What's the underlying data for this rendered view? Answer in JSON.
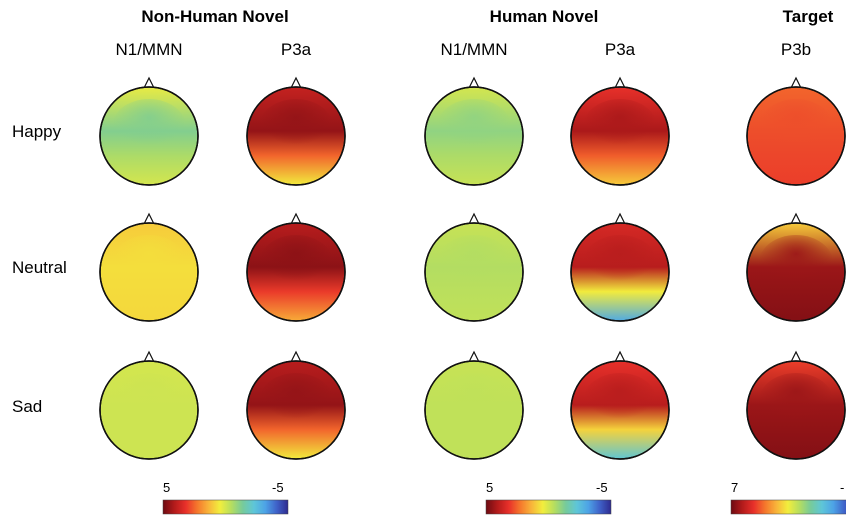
{
  "group_titles": [
    "Non-Human Novel",
    "Human Novel",
    "Target"
  ],
  "component_labels": [
    "N1/MMN",
    "P3a",
    "N1/MMN",
    "P3a",
    "P3b"
  ],
  "row_labels": [
    "Happy",
    "Neutral",
    "Sad"
  ],
  "colorbars": [
    {
      "left_label": "5",
      "right_label": "-5"
    },
    {
      "left_label": "5",
      "right_label": "-5"
    },
    {
      "left_label": "7",
      "right_label": "-"
    }
  ],
  "colors": {
    "colormap": [
      "#6d0b12",
      "#b31b1b",
      "#e8302a",
      "#f5772c",
      "#f8b43a",
      "#f2ee3d",
      "#b6de5f",
      "#77cb9a",
      "#5ec6d8",
      "#4da3e6",
      "#3f62c9",
      "#2e2b8f"
    ],
    "outline": "#111111"
  },
  "maps": [
    {
      "row": "Happy",
      "component": "N1/MMN",
      "value_top": 0.47,
      "value_center": 0.62,
      "value_bottom": 0.5
    },
    {
      "row": "Happy",
      "component": "P3a",
      "value_top": 0.12,
      "value_center": 0.05,
      "value_bottom": 0.45
    },
    {
      "row": "Happy",
      "component": "N1/MMN",
      "value_top": 0.5,
      "value_center": 0.6,
      "value_bottom": 0.52
    },
    {
      "row": "Happy",
      "component": "P3a",
      "value_top": 0.18,
      "value_center": 0.08,
      "value_bottom": 0.4
    },
    {
      "row": "Happy",
      "component": "P3b",
      "value_top": 0.25,
      "value_center": 0.22,
      "value_bottom": 0.2
    },
    {
      "row": "Neutral",
      "component": "N1/MMN",
      "value_top": 0.4,
      "value_center": 0.43,
      "value_bottom": 0.42
    },
    {
      "row": "Neutral",
      "component": "P3a",
      "value_top": 0.1,
      "value_center": 0.04,
      "value_bottom": 0.35
    },
    {
      "row": "Neutral",
      "component": "N1/MMN",
      "value_top": 0.52,
      "value_center": 0.55,
      "value_bottom": 0.53
    },
    {
      "row": "Neutral",
      "component": "P3a",
      "value_top": 0.15,
      "value_center": 0.1,
      "value_bottom": 0.8
    },
    {
      "row": "Neutral",
      "component": "P3b",
      "value_top": 0.4,
      "value_center": 0.06,
      "value_bottom": 0.03
    },
    {
      "row": "Sad",
      "component": "N1/MMN",
      "value_top": 0.5,
      "value_center": 0.51,
      "value_bottom": 0.51
    },
    {
      "row": "Sad",
      "component": "P3a",
      "value_top": 0.1,
      "value_center": 0.05,
      "value_bottom": 0.45
    },
    {
      "row": "Sad",
      "component": "N1/MMN",
      "value_top": 0.52,
      "value_center": 0.53,
      "value_bottom": 0.53
    },
    {
      "row": "Sad",
      "component": "P3a",
      "value_top": 0.18,
      "value_center": 0.1,
      "value_bottom": 0.72
    },
    {
      "row": "Sad",
      "component": "P3b",
      "value_top": 0.2,
      "value_center": 0.06,
      "value_bottom": 0.03
    }
  ]
}
